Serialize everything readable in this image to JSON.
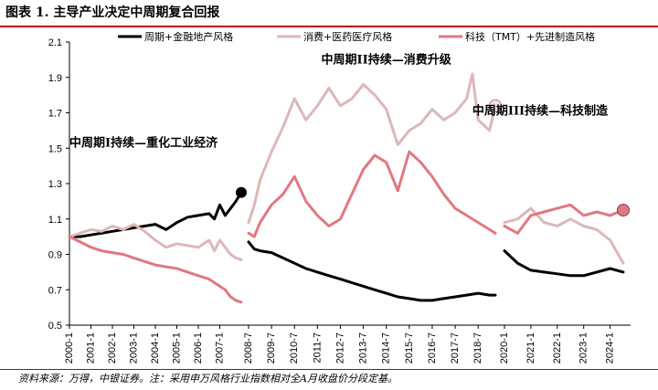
{
  "figure": {
    "title": "图表 1. 主导产业决定中周期复合回报",
    "source": "资料来源：万得，中银证券。注：采用申万风格行业指数相对全A月收盘价分段定基。"
  },
  "chart_data": {
    "type": "line",
    "ylim": [
      0.5,
      2.1
    ],
    "yticks": [
      "2.1",
      "1.9",
      "1.7",
      "1.5",
      "1.3",
      "1.1",
      "0.9",
      "0.7",
      "0.5"
    ],
    "xticks": [
      "2000-1",
      "2001-1",
      "2002-1",
      "2003-1",
      "2004-1",
      "2005-1",
      "2006-1",
      "2007-1",
      "2008-7",
      "2009-7",
      "2010-7",
      "2011-7",
      "2012-7",
      "2013-7",
      "2014-7",
      "2015-7",
      "2016-7",
      "2017-7",
      "2018-7",
      "2020-1",
      "2021-1",
      "2022-1",
      "2023-1",
      "2024-1"
    ],
    "legend_position": "top",
    "grid": false,
    "series": [
      {
        "name": "周期+金融地产风格",
        "color": "#000000",
        "segments": [
          [
            [
              "2000-01",
              1.0
            ],
            [
              "2000-07",
              1.0
            ],
            [
              "2001-01",
              1.01
            ],
            [
              "2001-07",
              1.02
            ],
            [
              "2002-01",
              1.03
            ],
            [
              "2002-07",
              1.04
            ],
            [
              "2003-01",
              1.05
            ],
            [
              "2003-07",
              1.06
            ],
            [
              "2004-01",
              1.07
            ],
            [
              "2004-07",
              1.04
            ],
            [
              "2005-01",
              1.08
            ],
            [
              "2005-07",
              1.11
            ],
            [
              "2006-01",
              1.12
            ],
            [
              "2006-07",
              1.13
            ],
            [
              "2006-10",
              1.1
            ],
            [
              "2007-01",
              1.18
            ],
            [
              "2007-04",
              1.12
            ],
            [
              "2007-07",
              1.16
            ],
            [
              "2007-10",
              1.2
            ],
            [
              "2008-01",
              1.25
            ]
          ],
          [
            [
              "2008-07",
              0.97
            ],
            [
              "2008-10",
              0.93
            ],
            [
              "2009-01",
              0.92
            ],
            [
              "2009-07",
              0.91
            ],
            [
              "2010-01",
              0.88
            ],
            [
              "2010-07",
              0.85
            ],
            [
              "2011-01",
              0.82
            ],
            [
              "2011-07",
              0.8
            ],
            [
              "2012-01",
              0.78
            ],
            [
              "2012-07",
              0.76
            ],
            [
              "2013-01",
              0.74
            ],
            [
              "2013-07",
              0.72
            ],
            [
              "2014-01",
              0.7
            ],
            [
              "2014-07",
              0.68
            ],
            [
              "2015-01",
              0.66
            ],
            [
              "2015-07",
              0.65
            ],
            [
              "2016-01",
              0.64
            ],
            [
              "2016-07",
              0.64
            ],
            [
              "2017-01",
              0.65
            ],
            [
              "2017-07",
              0.66
            ],
            [
              "2018-01",
              0.67
            ],
            [
              "2018-07",
              0.68
            ],
            [
              "2019-01",
              0.67
            ],
            [
              "2019-04",
              0.67
            ]
          ],
          [
            [
              "2020-01",
              0.92
            ],
            [
              "2020-07",
              0.85
            ],
            [
              "2021-01",
              0.81
            ],
            [
              "2021-07",
              0.8
            ],
            [
              "2022-01",
              0.79
            ],
            [
              "2022-07",
              0.78
            ],
            [
              "2023-01",
              0.78
            ],
            [
              "2023-07",
              0.8
            ],
            [
              "2024-01",
              0.82
            ],
            [
              "2024-07",
              0.8
            ]
          ]
        ]
      },
      {
        "name": "消费+医药医疗风格",
        "color": "#dcb8b8",
        "segments": [
          [
            [
              "2000-01",
              1.0
            ],
            [
              "2000-07",
              1.02
            ],
            [
              "2001-01",
              1.04
            ],
            [
              "2001-07",
              1.03
            ],
            [
              "2002-01",
              1.06
            ],
            [
              "2002-07",
              1.04
            ],
            [
              "2003-01",
              1.07
            ],
            [
              "2003-07",
              1.03
            ],
            [
              "2004-01",
              0.98
            ],
            [
              "2004-07",
              0.94
            ],
            [
              "2005-01",
              0.96
            ],
            [
              "2005-07",
              0.95
            ],
            [
              "2006-01",
              0.94
            ],
            [
              "2006-07",
              0.98
            ],
            [
              "2006-10",
              0.92
            ],
            [
              "2007-01",
              0.98
            ],
            [
              "2007-04",
              0.94
            ],
            [
              "2007-07",
              0.9
            ],
            [
              "2007-10",
              0.88
            ],
            [
              "2008-01",
              0.87
            ]
          ],
          [
            [
              "2008-07",
              1.08
            ],
            [
              "2008-10",
              1.18
            ],
            [
              "2009-01",
              1.32
            ],
            [
              "2009-07",
              1.48
            ],
            [
              "2010-01",
              1.62
            ],
            [
              "2010-07",
              1.78
            ],
            [
              "2011-01",
              1.66
            ],
            [
              "2011-07",
              1.74
            ],
            [
              "2012-01",
              1.84
            ],
            [
              "2012-07",
              1.74
            ],
            [
              "2013-01",
              1.78
            ],
            [
              "2013-07",
              1.86
            ],
            [
              "2014-01",
              1.8
            ],
            [
              "2014-07",
              1.72
            ],
            [
              "2015-01",
              1.52
            ],
            [
              "2015-07",
              1.6
            ],
            [
              "2016-01",
              1.64
            ],
            [
              "2016-07",
              1.72
            ],
            [
              "2017-01",
              1.66
            ],
            [
              "2017-07",
              1.7
            ],
            [
              "2018-01",
              1.78
            ],
            [
              "2018-04",
              1.92
            ],
            [
              "2018-07",
              1.66
            ],
            [
              "2019-01",
              1.6
            ],
            [
              "2019-04",
              1.74
            ]
          ],
          [
            [
              "2020-01",
              1.08
            ],
            [
              "2020-07",
              1.1
            ],
            [
              "2021-01",
              1.16
            ],
            [
              "2021-07",
              1.08
            ],
            [
              "2022-01",
              1.06
            ],
            [
              "2022-07",
              1.1
            ],
            [
              "2023-01",
              1.06
            ],
            [
              "2023-07",
              1.04
            ],
            [
              "2024-01",
              0.98
            ],
            [
              "2024-07",
              0.85
            ]
          ]
        ]
      },
      {
        "name": "科技（TMT）+先进制造风格",
        "color": "#e07880",
        "segments": [
          [
            [
              "2000-01",
              1.0
            ],
            [
              "2000-07",
              0.97
            ],
            [
              "2001-01",
              0.94
            ],
            [
              "2001-07",
              0.92
            ],
            [
              "2002-01",
              0.91
            ],
            [
              "2002-07",
              0.9
            ],
            [
              "2003-01",
              0.88
            ],
            [
              "2003-07",
              0.86
            ],
            [
              "2004-01",
              0.84
            ],
            [
              "2004-07",
              0.83
            ],
            [
              "2005-01",
              0.82
            ],
            [
              "2005-07",
              0.8
            ],
            [
              "2006-01",
              0.78
            ],
            [
              "2006-07",
              0.76
            ],
            [
              "2006-10",
              0.74
            ],
            [
              "2007-01",
              0.72
            ],
            [
              "2007-04",
              0.7
            ],
            [
              "2007-07",
              0.66
            ],
            [
              "2007-10",
              0.64
            ],
            [
              "2008-01",
              0.63
            ]
          ],
          [
            [
              "2008-07",
              1.02
            ],
            [
              "2008-10",
              1.0
            ],
            [
              "2009-01",
              1.08
            ],
            [
              "2009-07",
              1.18
            ],
            [
              "2010-01",
              1.24
            ],
            [
              "2010-07",
              1.34
            ],
            [
              "2011-01",
              1.2
            ],
            [
              "2011-07",
              1.12
            ],
            [
              "2012-01",
              1.06
            ],
            [
              "2012-07",
              1.1
            ],
            [
              "2013-01",
              1.24
            ],
            [
              "2013-07",
              1.38
            ],
            [
              "2014-01",
              1.46
            ],
            [
              "2014-07",
              1.42
            ],
            [
              "2015-01",
              1.26
            ],
            [
              "2015-07",
              1.48
            ],
            [
              "2016-01",
              1.42
            ],
            [
              "2016-07",
              1.34
            ],
            [
              "2017-01",
              1.24
            ],
            [
              "2017-07",
              1.16
            ],
            [
              "2018-01",
              1.12
            ],
            [
              "2018-07",
              1.08
            ],
            [
              "2019-01",
              1.04
            ],
            [
              "2019-04",
              1.02
            ]
          ],
          [
            [
              "2020-01",
              1.06
            ],
            [
              "2020-07",
              1.02
            ],
            [
              "2021-01",
              1.12
            ],
            [
              "2021-07",
              1.14
            ],
            [
              "2022-01",
              1.16
            ],
            [
              "2022-07",
              1.18
            ],
            [
              "2023-01",
              1.12
            ],
            [
              "2023-07",
              1.14
            ],
            [
              "2024-01",
              1.12
            ],
            [
              "2024-07",
              1.15
            ]
          ]
        ]
      }
    ],
    "annotations": [
      {
        "text": "中周期I持续—重化工业经济",
        "at": [
          "2000-01",
          1.51
        ]
      },
      {
        "text": "中周期II持续—消费升级",
        "at": [
          "2011-09",
          1.98
        ]
      },
      {
        "text": "中周期III持续—科技制造",
        "at": [
          "2018-04",
          1.69
        ]
      }
    ]
  }
}
